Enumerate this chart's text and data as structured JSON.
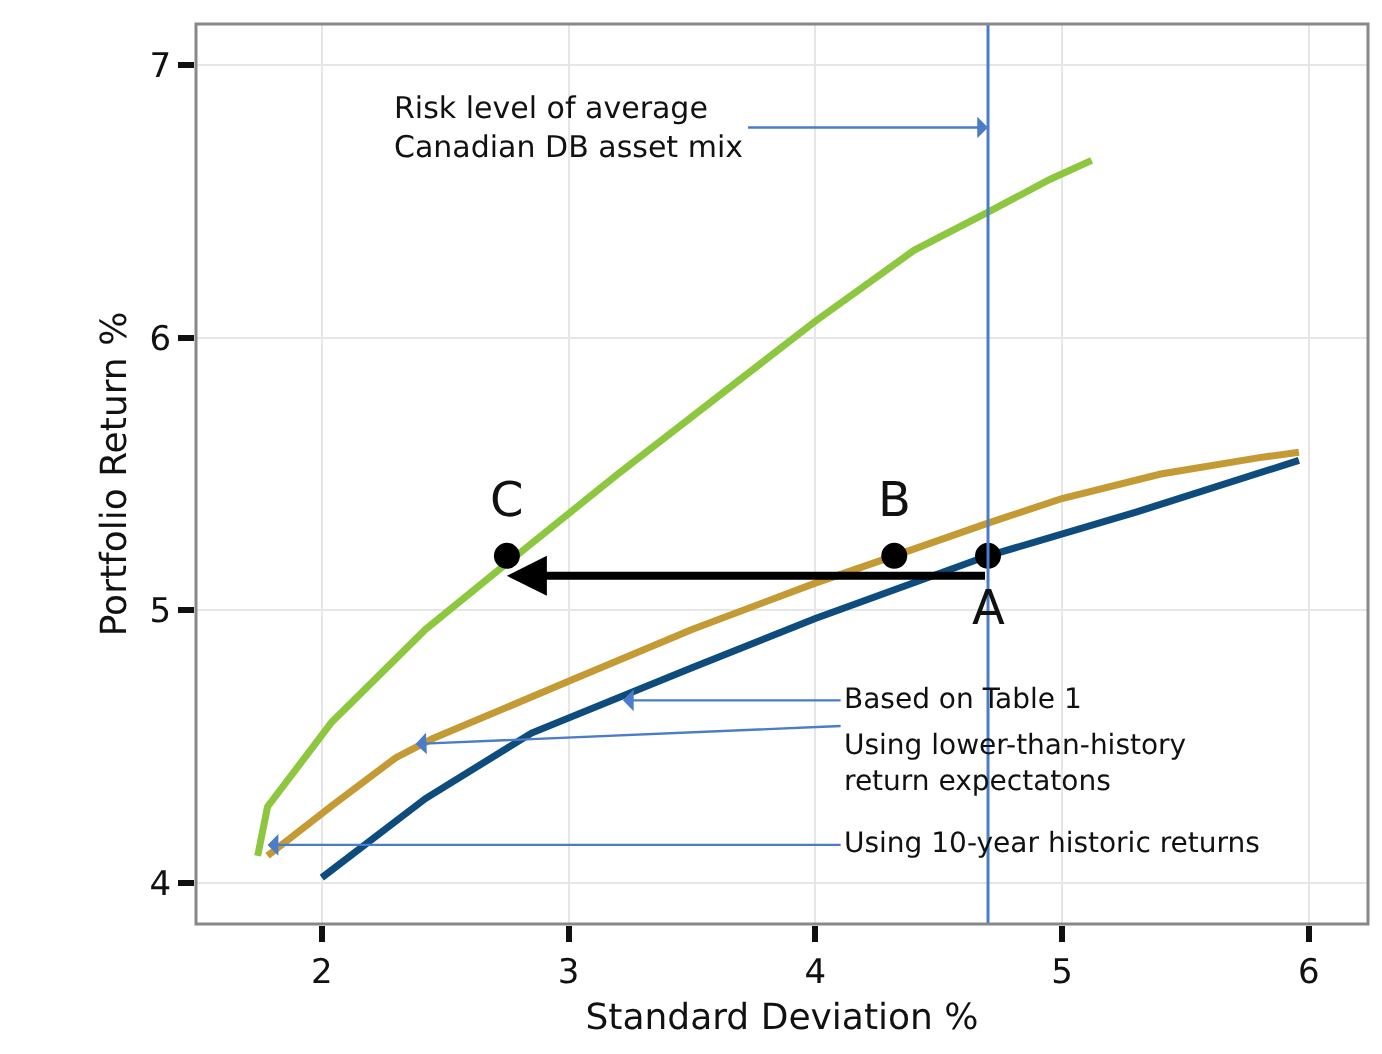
{
  "chart_data": {
    "type": "line",
    "xlabel": "Standard Deviation %",
    "ylabel": "Portfolio Return %",
    "xlim": [
      1.49,
      6.24
    ],
    "ylim": [
      3.85,
      7.15
    ],
    "xticks": [
      2,
      3,
      4,
      5,
      6
    ],
    "yticks": [
      4,
      5,
      6,
      7
    ],
    "grid": true,
    "legend": false,
    "line_style": "solid",
    "series": [
      {
        "color": "#8dc63f",
        "x": [
          1.74,
          1.78,
          2.04,
          2.42,
          2.76,
          3.2,
          3.6,
          4.0,
          4.4,
          4.7,
          4.95,
          5.12
        ],
        "values": [
          4.1,
          4.28,
          4.59,
          4.93,
          5.18,
          5.5,
          5.78,
          6.06,
          6.32,
          6.46,
          6.58,
          6.65
        ]
      },
      {
        "color": "#c49a35",
        "x": [
          1.78,
          2.05,
          2.3,
          2.45,
          3.0,
          3.5,
          4.0,
          4.32,
          4.7,
          5.0,
          5.4,
          5.8,
          5.96
        ],
        "values": [
          4.1,
          4.29,
          4.46,
          4.53,
          4.74,
          4.93,
          5.1,
          5.2,
          5.32,
          5.41,
          5.5,
          5.56,
          5.58
        ]
      },
      {
        "color": "#0d4c7c",
        "x": [
          2.0,
          2.42,
          2.85,
          3.5,
          4.0,
          4.7,
          5.3,
          5.96
        ],
        "values": [
          4.02,
          4.31,
          4.55,
          4.79,
          4.97,
          5.2,
          5.36,
          5.55
        ]
      },
      {
        "type": "scatter",
        "marker": "circle",
        "color": "#000000",
        "x": [
          4.7,
          4.32,
          2.75
        ],
        "values": [
          5.2,
          5.2,
          5.2
        ]
      }
    ],
    "ref_lines": [
      {
        "axis": "x",
        "value": 4.7,
        "label": "Risk level of average\nCanadian DB asset mix",
        "color": "#4a7cc7"
      }
    ],
    "annotations": [
      {
        "text": "A",
        "x": 4.7,
        "y": 5.2
      },
      {
        "text": "B",
        "x": 4.32,
        "y": 5.2
      },
      {
        "text": "C",
        "x": 2.75,
        "y": 5.2
      },
      {
        "text": "Based on Table 1",
        "x": 3.22,
        "y": 4.67
      },
      {
        "text": "Using lower-than-history\nreturn expectatons",
        "x": 2.38,
        "y": 4.51
      },
      {
        "text": "Using 10-year historic returns",
        "x": 1.78,
        "y": 4.14
      }
    ]
  }
}
